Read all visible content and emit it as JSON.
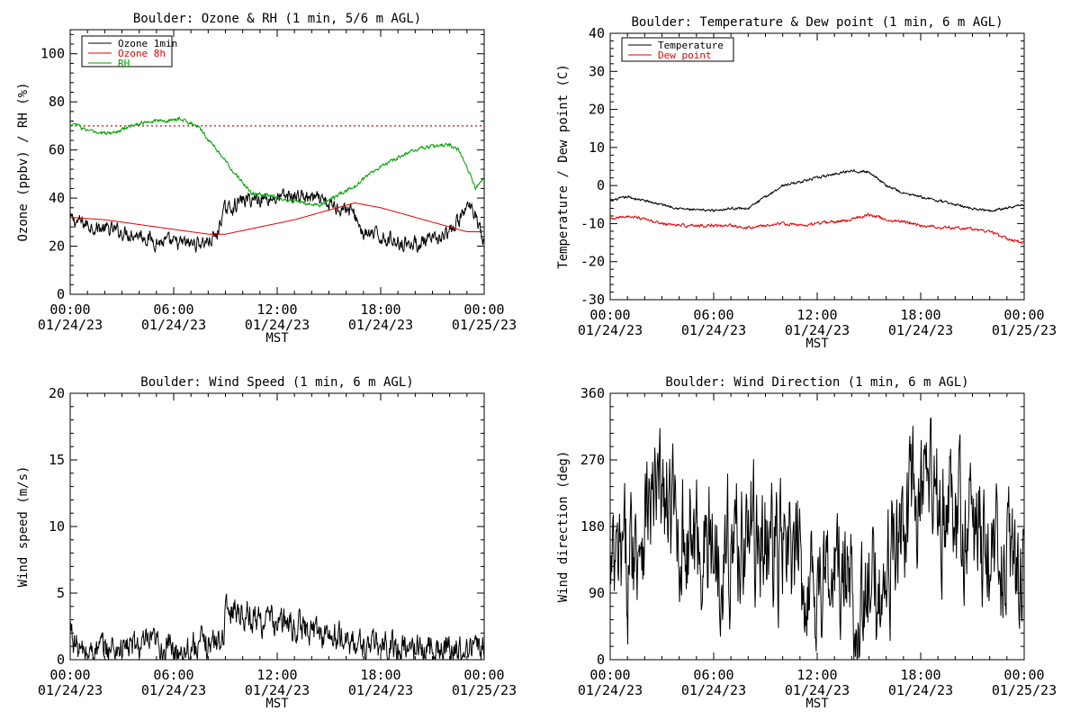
{
  "colors": {
    "black": "#000000",
    "red": "#e00000",
    "green": "#00a000"
  },
  "chart_data": [
    {
      "type": "line",
      "title": "Boulder: Ozone & RH (1 min, 5/6 m AGL)",
      "xlabel": "MST",
      "ylabel": "Ozone (ppbv) / RH (%)",
      "x_range_hours": [
        0,
        24
      ],
      "x_ticks": [
        {
          "time": "00:00",
          "date": "01/24/23"
        },
        {
          "time": "06:00",
          "date": "01/24/23"
        },
        {
          "time": "12:00",
          "date": "01/24/23"
        },
        {
          "time": "18:00",
          "date": "01/24/23"
        },
        {
          "time": "00:00",
          "date": "01/25/23"
        }
      ],
      "ylim": [
        0,
        110
      ],
      "y_ticks": [
        0,
        20,
        40,
        60,
        80,
        100
      ],
      "grid": false,
      "legend_position": "top-left",
      "reference_line": {
        "y": 70,
        "style": "dotted",
        "color": "#e00000"
      },
      "series": [
        {
          "name": "Ozone 1min",
          "color": "#000000",
          "noise": 2.5,
          "x": [
            0,
            0.5,
            1,
            2,
            3,
            4,
            5,
            6,
            7,
            8,
            8.5,
            8.8,
            9,
            10,
            11,
            12,
            13,
            14,
            15,
            16,
            16.5,
            17,
            18,
            19,
            20,
            21,
            22,
            23,
            23.5,
            24
          ],
          "y": [
            31,
            30,
            29,
            27,
            26,
            25,
            22,
            21,
            21,
            22,
            24,
            33,
            35,
            39,
            40,
            40,
            41,
            40,
            37,
            36,
            33,
            25,
            24,
            22,
            21,
            22,
            25,
            36,
            35,
            20
          ]
        },
        {
          "name": "Ozone 8h",
          "color": "#e00000",
          "noise": 0,
          "x": [
            0,
            2,
            4,
            6,
            8,
            9,
            11,
            13,
            15,
            16.5,
            18,
            20,
            22,
            23,
            24
          ],
          "y": [
            32,
            31,
            29,
            27,
            25,
            25,
            28,
            31,
            35,
            38,
            36,
            32,
            28,
            26,
            26
          ]
        },
        {
          "name": "RH",
          "color": "#00a000",
          "noise": 0.6,
          "x": [
            0,
            0.3,
            0.7,
            1.5,
            2.5,
            3.5,
            4.5,
            5.5,
            6.5,
            7.5,
            8.5,
            9.5,
            10.5,
            11.5,
            12.5,
            13.5,
            14.5,
            15.5,
            16.5,
            17.5,
            18.5,
            19.5,
            20.5,
            21.5,
            22,
            22.5,
            23,
            23.5,
            24
          ],
          "y": [
            70,
            71,
            69,
            67,
            67,
            70,
            72,
            72,
            73,
            69,
            60,
            51,
            42,
            41,
            39,
            38,
            37,
            41,
            45,
            51,
            55,
            59,
            61,
            62,
            62,
            60,
            53,
            44,
            49
          ]
        }
      ]
    },
    {
      "type": "line",
      "title": "Boulder: Temperature & Dew point (1 min, 6 m AGL)",
      "xlabel": "MST",
      "ylabel": "Temperature / Dew point (C)",
      "x_range_hours": [
        0,
        24
      ],
      "x_ticks": [
        {
          "time": "00:00",
          "date": "01/24/23"
        },
        {
          "time": "06:00",
          "date": "01/24/23"
        },
        {
          "time": "12:00",
          "date": "01/24/23"
        },
        {
          "time": "18:00",
          "date": "01/24/23"
        },
        {
          "time": "00:00",
          "date": "01/25/23"
        }
      ],
      "ylim": [
        -30,
        40
      ],
      "y_ticks": [
        -30,
        -20,
        -10,
        0,
        10,
        20,
        30,
        40
      ],
      "grid": false,
      "legend_position": "top-left",
      "series": [
        {
          "name": "Temperature",
          "color": "#000000",
          "noise": 0.25,
          "x": [
            0,
            1,
            2,
            3,
            4,
            5,
            6,
            7,
            8,
            9,
            10,
            11,
            12,
            13,
            14,
            15,
            15.5,
            16,
            17,
            18,
            19,
            20,
            21,
            22,
            23,
            24
          ],
          "y": [
            -4,
            -3,
            -4,
            -5,
            -6,
            -6.5,
            -6.5,
            -6,
            -6,
            -3,
            0,
            1,
            2,
            3,
            4,
            3.5,
            2,
            0,
            -2,
            -3,
            -4,
            -5,
            -6,
            -6.5,
            -6,
            -5
          ]
        },
        {
          "name": "Dew point",
          "color": "#e00000",
          "noise": 0.3,
          "x": [
            0,
            1,
            2,
            3,
            4,
            5,
            6,
            7,
            8,
            9,
            10,
            11,
            12,
            13,
            14,
            15,
            16,
            17,
            18,
            19,
            20,
            21,
            22,
            23,
            24
          ],
          "y": [
            -9,
            -8,
            -9,
            -10,
            -10.5,
            -10.5,
            -10.5,
            -10.5,
            -11,
            -10.5,
            -10,
            -10.5,
            -10,
            -9.5,
            -9,
            -7.5,
            -9,
            -9.5,
            -10.5,
            -11,
            -11,
            -11.5,
            -12,
            -14,
            -15
          ]
        }
      ]
    },
    {
      "type": "line",
      "title": "Boulder: Wind Speed (1 min, 6 m AGL)",
      "xlabel": "MST",
      "ylabel": "Wind speed (m/s)",
      "x_range_hours": [
        0,
        24
      ],
      "x_ticks": [
        {
          "time": "00:00",
          "date": "01/24/23"
        },
        {
          "time": "06:00",
          "date": "01/24/23"
        },
        {
          "time": "12:00",
          "date": "01/24/23"
        },
        {
          "time": "18:00",
          "date": "01/24/23"
        },
        {
          "time": "00:00",
          "date": "01/25/23"
        }
      ],
      "ylim": [
        0,
        20
      ],
      "y_ticks": [
        0,
        5,
        10,
        15,
        20
      ],
      "grid": false,
      "series": [
        {
          "color": "#000000",
          "noise": 0.9,
          "x": [
            0,
            0.2,
            0.6,
            1,
            2,
            3,
            4,
            5,
            6,
            7,
            8,
            8.8,
            9,
            9.5,
            10,
            11,
            12,
            13,
            14,
            15,
            16,
            17,
            18,
            19,
            20,
            21,
            22,
            23,
            24
          ],
          "y": [
            2.5,
            1.5,
            0.5,
            0.5,
            0.8,
            0.9,
            1,
            1.1,
            0.7,
            1,
            1.2,
            1.5,
            3.5,
            4,
            3.5,
            3,
            2.8,
            2.5,
            2.2,
            1.8,
            1.4,
            1,
            1,
            0.9,
            0.9,
            0.8,
            0.8,
            0.8,
            0.9
          ]
        }
      ]
    },
    {
      "type": "line",
      "title": "Boulder: Wind Direction (1 min, 6 m AGL)",
      "xlabel": "MST",
      "ylabel": "Wind direction (deg)",
      "x_range_hours": [
        0,
        24
      ],
      "x_ticks": [
        {
          "time": "00:00",
          "date": "01/24/23"
        },
        {
          "time": "06:00",
          "date": "01/24/23"
        },
        {
          "time": "12:00",
          "date": "01/24/23"
        },
        {
          "time": "18:00",
          "date": "01/24/23"
        },
        {
          "time": "00:00",
          "date": "01/25/23"
        }
      ],
      "ylim": [
        0,
        360
      ],
      "y_ticks": [
        0,
        90,
        180,
        270,
        360
      ],
      "grid": false,
      "series": [
        {
          "color": "#000000",
          "noise": 70,
          "x": [
            0,
            1,
            2,
            3,
            4,
            5,
            6,
            7,
            7.5,
            8,
            9,
            10,
            11,
            12,
            13,
            14,
            14.5,
            15,
            15.5,
            16,
            17,
            18,
            19,
            20,
            21,
            22,
            23,
            24
          ],
          "y": [
            100,
            130,
            200,
            220,
            170,
            160,
            150,
            150,
            170,
            170,
            160,
            140,
            115,
            110,
            110,
            100,
            70,
            70,
            100,
            120,
            180,
            220,
            220,
            180,
            180,
            150,
            140,
            110
          ]
        }
      ]
    }
  ]
}
